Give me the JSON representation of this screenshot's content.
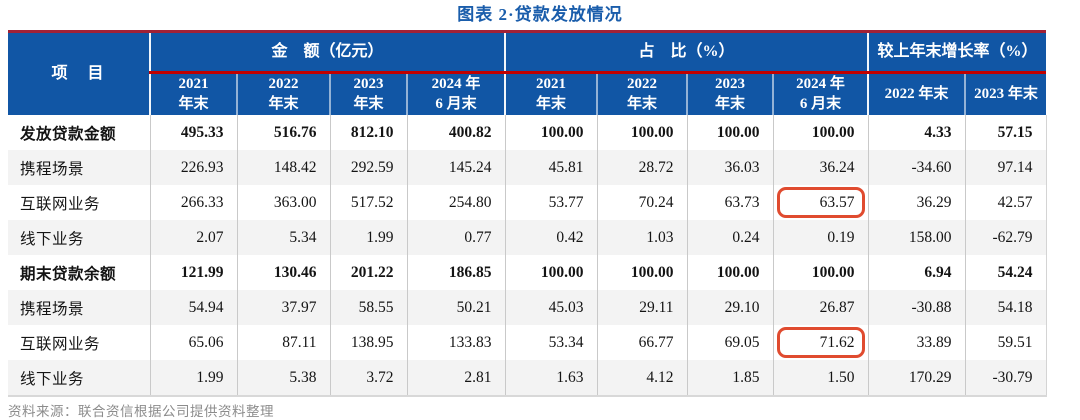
{
  "title": "图表 2·贷款发放情况",
  "colors": {
    "header_bg": "#1156a5",
    "header_text": "#ffffff",
    "top_border_red": "#a12136",
    "accent_red_line": "#c00000",
    "highlight_box_red": "#e04b2f",
    "title_blue": "#1a5dab",
    "alt_row_bg": "#f3f3f3"
  },
  "table": {
    "item_header": "项　目",
    "groups": [
      {
        "label": "金　额（亿元）"
      },
      {
        "label": "占　比（%）"
      },
      {
        "label": "较上年末增长率（%）"
      }
    ],
    "sub_headers": {
      "amount": [
        [
          "2021",
          "年末"
        ],
        [
          "2022",
          "年末"
        ],
        [
          "2023",
          "年末"
        ],
        [
          "2024 年",
          "6 月末"
        ]
      ],
      "share": [
        [
          "2021",
          "年末"
        ],
        [
          "2022",
          "年末"
        ],
        [
          "2023",
          "年末"
        ],
        [
          "2024 年",
          "6 月末"
        ]
      ],
      "growth": [
        "2022 年末",
        "2023 年末"
      ]
    },
    "rows": [
      {
        "label": "发放贷款金额",
        "bold": true,
        "values": [
          "495.33",
          "516.76",
          "812.10",
          "400.82",
          "100.00",
          "100.00",
          "100.00",
          "100.00",
          "4.33",
          "57.15"
        ]
      },
      {
        "label": "携程场景",
        "bold": false,
        "values": [
          "226.93",
          "148.42",
          "292.59",
          "145.24",
          "45.81",
          "28.72",
          "36.03",
          "36.24",
          "-34.60",
          "97.14"
        ]
      },
      {
        "label": "互联网业务",
        "bold": false,
        "highlight_col": 7,
        "values": [
          "266.33",
          "363.00",
          "517.52",
          "254.80",
          "53.77",
          "70.24",
          "63.73",
          "63.57",
          "36.29",
          "42.57"
        ]
      },
      {
        "label": "线下业务",
        "bold": false,
        "values": [
          "2.07",
          "5.34",
          "1.99",
          "0.77",
          "0.42",
          "1.03",
          "0.24",
          "0.19",
          "158.00",
          "-62.79"
        ]
      },
      {
        "label": "期末贷款余额",
        "bold": true,
        "values": [
          "121.99",
          "130.46",
          "201.22",
          "186.85",
          "100.00",
          "100.00",
          "100.00",
          "100.00",
          "6.94",
          "54.24"
        ]
      },
      {
        "label": "携程场景",
        "bold": false,
        "values": [
          "54.94",
          "37.97",
          "58.55",
          "50.21",
          "45.03",
          "29.11",
          "29.10",
          "26.87",
          "-30.88",
          "54.18"
        ]
      },
      {
        "label": "互联网业务",
        "bold": false,
        "highlight_col": 7,
        "values": [
          "65.06",
          "87.11",
          "138.95",
          "133.83",
          "53.34",
          "66.77",
          "69.05",
          "71.62",
          "33.89",
          "59.51"
        ]
      },
      {
        "label": "线下业务",
        "bold": false,
        "values": [
          "1.99",
          "5.38",
          "3.72",
          "2.81",
          "1.63",
          "4.12",
          "1.85",
          "1.50",
          "170.29",
          "-30.79"
        ]
      }
    ]
  },
  "footer": {
    "source_note": "资料来源：联合资信根据公司提供资料整理"
  }
}
